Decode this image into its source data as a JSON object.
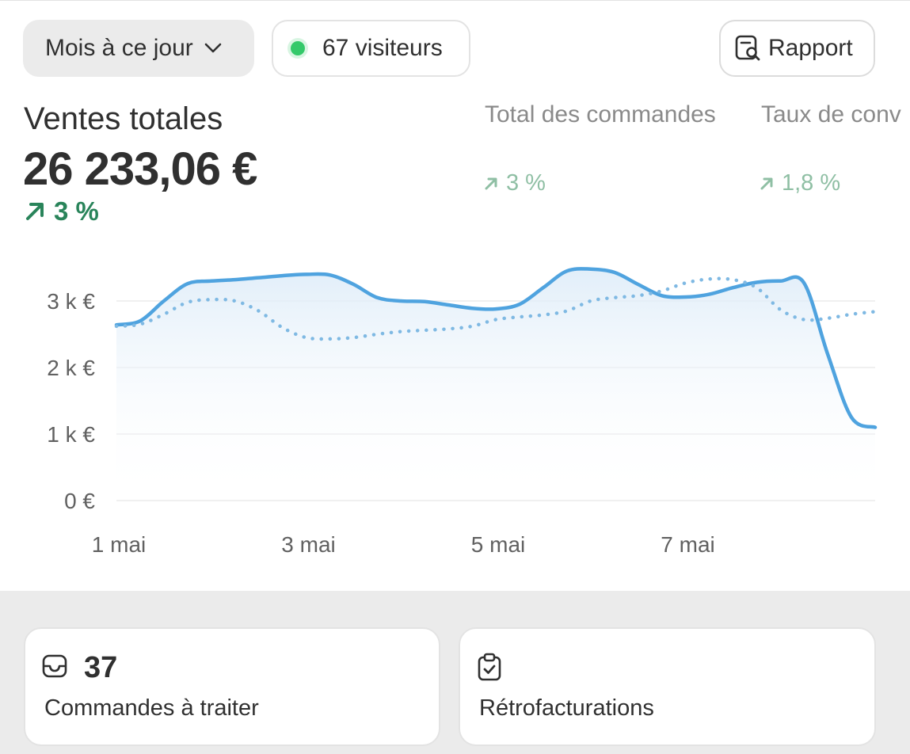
{
  "toolbar": {
    "period_label": "Mois à ce jour",
    "visitors_label": "67 visiteurs",
    "report_label": "Rapport"
  },
  "metrics": {
    "primary": {
      "title": "Ventes totales",
      "value": "26 233,06 €",
      "change": "3 %"
    },
    "secondary": [
      {
        "title": "Total des commandes",
        "change": "3 %"
      },
      {
        "title": "Taux de conv",
        "change": "1,8 %"
      }
    ]
  },
  "chart_data": {
    "type": "line",
    "ylim": [
      0,
      3500
    ],
    "yticks": [
      {
        "value": 0,
        "label": "0 €"
      },
      {
        "value": 1000,
        "label": "1 k €"
      },
      {
        "value": 2000,
        "label": "2 k €"
      },
      {
        "value": 3000,
        "label": "3 k €"
      }
    ],
    "xticks": [
      {
        "x": 1,
        "label": "1 mai"
      },
      {
        "x": 3,
        "label": "3 mai"
      },
      {
        "x": 5,
        "label": "5 mai"
      },
      {
        "x": 7,
        "label": "7 mai"
      }
    ],
    "x": [
      1,
      1.25,
      1.5,
      1.75,
      2,
      2.25,
      2.5,
      2.75,
      3,
      3.25,
      3.5,
      3.75,
      4,
      4.25,
      4.5,
      4.75,
      5,
      5.25,
      5.5,
      5.75,
      6,
      6.25,
      6.5,
      6.75,
      7,
      7.25,
      7.5,
      7.75,
      8,
      8.25,
      8.5,
      8.75,
      9
    ],
    "series": [
      {
        "style": "solid",
        "color": "#4fa3df",
        "values": [
          2640,
          2700,
          3000,
          3260,
          3300,
          3320,
          3350,
          3380,
          3400,
          3390,
          3250,
          3050,
          3000,
          2990,
          2940,
          2890,
          2880,
          2950,
          3200,
          3450,
          3480,
          3430,
          3250,
          3080,
          3060,
          3100,
          3200,
          3280,
          3300,
          3270,
          2200,
          1250,
          1100
        ]
      },
      {
        "style": "dotted",
        "color": "#7fb9e3",
        "values": [
          2620,
          2650,
          2800,
          2980,
          3020,
          3000,
          2850,
          2600,
          2450,
          2430,
          2450,
          2500,
          2540,
          2560,
          2580,
          2620,
          2720,
          2760,
          2790,
          2850,
          3000,
          3050,
          3080,
          3150,
          3270,
          3330,
          3320,
          3200,
          2870,
          2720,
          2740,
          2800,
          2840
        ]
      }
    ]
  },
  "cards": [
    {
      "count": "37",
      "label": "Commandes à traiter"
    },
    {
      "count": "",
      "label": "Rétrofacturations"
    }
  ]
}
